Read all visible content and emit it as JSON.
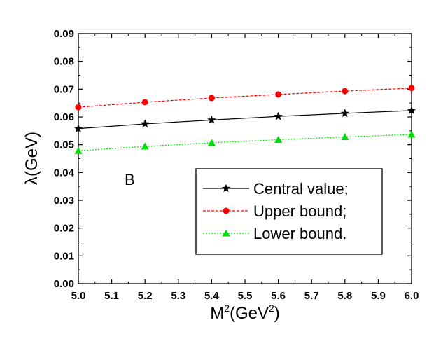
{
  "chart_data": {
    "type": "line",
    "title": "",
    "xlabel_main": "M",
    "xlabel_sup": "2",
    "xlabel_rest": "(GeV",
    "xlabel_sup2": "2",
    "xlabel_end": ")",
    "ylabel": "λ(GeV)",
    "xlim": [
      5.0,
      6.0
    ],
    "ylim": [
      0.0,
      0.09
    ],
    "x_ticks": [
      "5.0",
      "5.1",
      "5.2",
      "5.3",
      "5.4",
      "5.5",
      "5.6",
      "5.7",
      "5.8",
      "5.9",
      "6.0"
    ],
    "y_ticks": [
      "0.00",
      "0.01",
      "0.02",
      "0.03",
      "0.04",
      "0.05",
      "0.06",
      "0.07",
      "0.08",
      "0.09"
    ],
    "x": [
      5.0,
      5.2,
      5.4,
      5.6,
      5.8,
      6.0
    ],
    "series": [
      {
        "name": "Central value;",
        "values": [
          0.0558,
          0.0575,
          0.0589,
          0.0602,
          0.0613,
          0.0623
        ],
        "color": "#000000",
        "marker": "star",
        "dash": "solid"
      },
      {
        "name": "Upper bound;",
        "values": [
          0.0635,
          0.0653,
          0.0668,
          0.0681,
          0.0693,
          0.0704
        ],
        "color": "#ff0000",
        "marker": "circle",
        "dash": "dashed"
      },
      {
        "name": "Lower bound.",
        "values": [
          0.0478,
          0.0494,
          0.0507,
          0.0518,
          0.0528,
          0.0537
        ],
        "color": "#00dd00",
        "marker": "triangle",
        "dash": "dotted"
      }
    ],
    "annotation": "B",
    "legend_position": "lower-right",
    "grid": false
  }
}
